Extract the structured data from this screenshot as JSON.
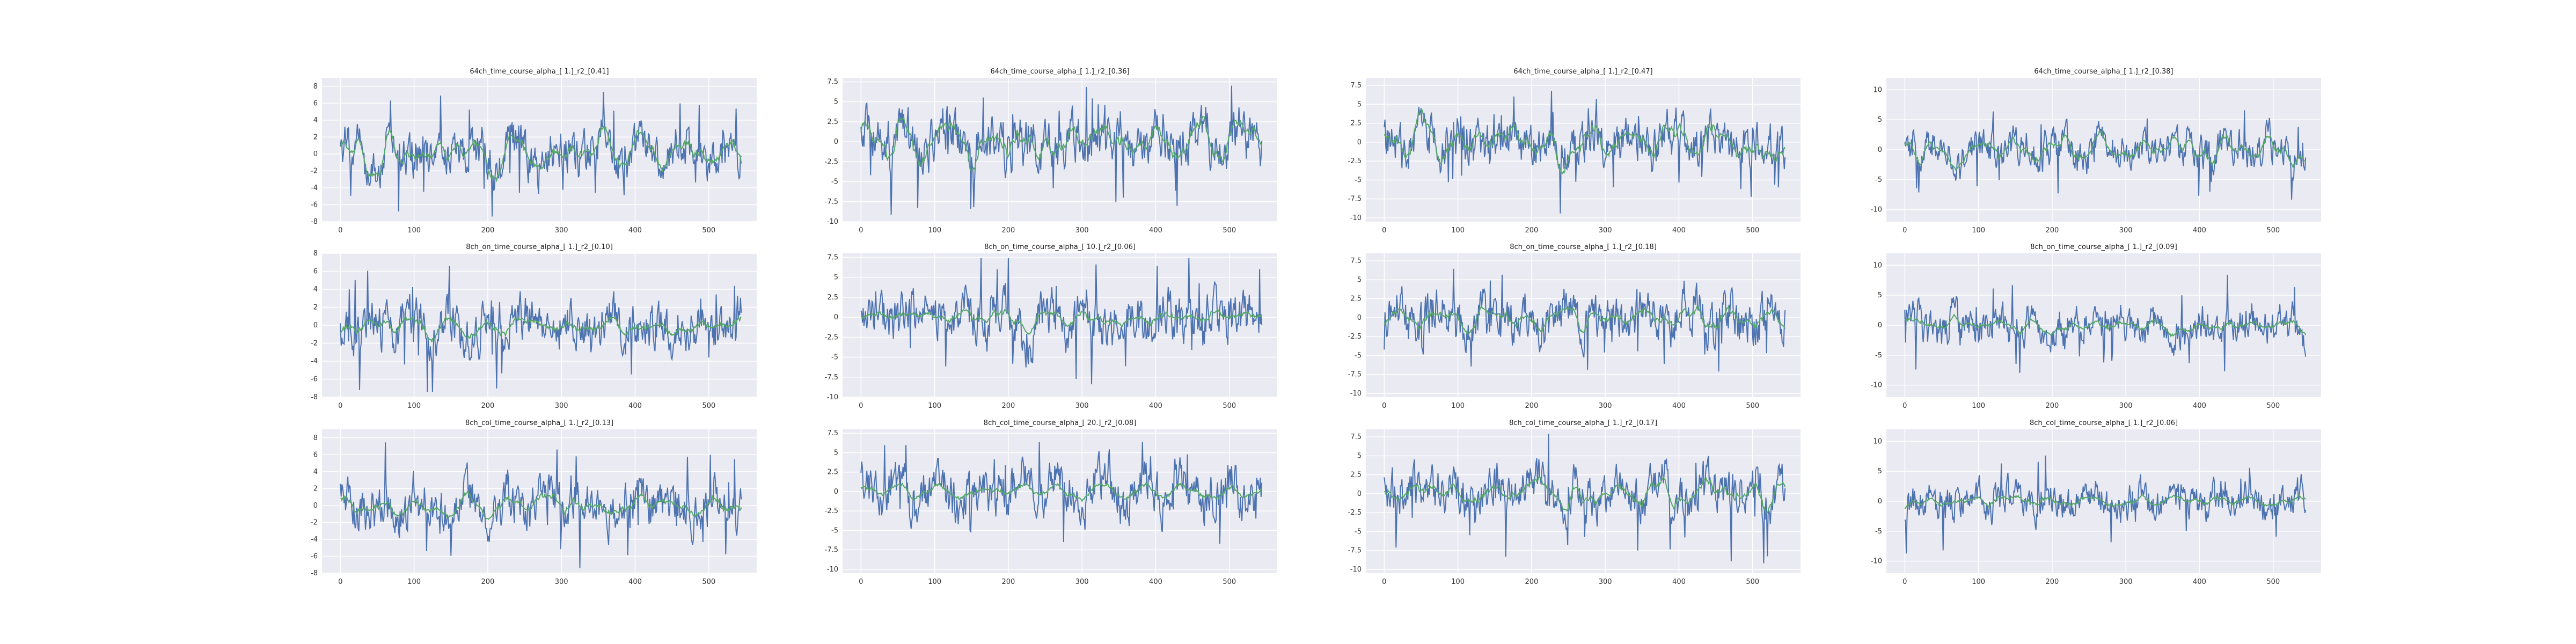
{
  "colors": {
    "panel_bg": "#eaeaf2",
    "grid": "#ffffff",
    "series_blue": "#4c72b0",
    "series_green": "#55a868"
  },
  "chart_data": [
    {
      "type": "line",
      "title": "64ch_time_course_alpha_[ 1.]_r2_[0.41]",
      "xlim": [
        0,
        540
      ],
      "ylim": [
        -8,
        9
      ],
      "yticks": [
        -8,
        -6,
        -4,
        -2,
        0,
        2,
        4,
        6,
        8
      ],
      "xticks": [
        0,
        100,
        200,
        300,
        400,
        500
      ],
      "amp": 2.6,
      "gamp": 1.6,
      "grid": true,
      "series": [
        {
          "color": "#4c72b0"
        },
        {
          "color": "#55a868"
        }
      ]
    },
    {
      "type": "line",
      "title": "64ch_time_course_alpha_[ 1.]_r2_[0.36]",
      "xlim": [
        0,
        540
      ],
      "ylim": [
        -10,
        8
      ],
      "yticks": [
        -10,
        -7.5,
        -5,
        -2.5,
        0,
        2.5,
        5,
        7.5
      ],
      "xticks": [
        0,
        100,
        200,
        300,
        400,
        500
      ],
      "amp": 3.0,
      "gamp": 1.8,
      "grid": true,
      "series": [
        {
          "color": "#4c72b0"
        },
        {
          "color": "#55a868"
        }
      ]
    },
    {
      "type": "line",
      "title": "64ch_time_course_alpha_[ 1.]_r2_[0.47]",
      "xlim": [
        0,
        540
      ],
      "ylim": [
        -10.5,
        8.5
      ],
      "yticks": [
        -10,
        -7.5,
        -5,
        -2.5,
        0,
        2.5,
        5,
        7.5
      ],
      "xticks": [
        0,
        100,
        200,
        300,
        400,
        500
      ],
      "amp": 3.0,
      "gamp": 2.0,
      "grid": true,
      "series": [
        {
          "color": "#4c72b0"
        },
        {
          "color": "#55a868"
        }
      ]
    },
    {
      "type": "line",
      "title": "64ch_time_course_alpha_[ 1.]_r2_[0.38]",
      "xlim": [
        0,
        540
      ],
      "ylim": [
        -12,
        12
      ],
      "yticks": [
        -10,
        -5,
        0,
        5,
        10
      ],
      "xticks": [
        0,
        100,
        200,
        300,
        400,
        500
      ],
      "amp": 3.0,
      "gamp": 1.5,
      "grid": true,
      "series": [
        {
          "color": "#4c72b0"
        },
        {
          "color": "#55a868"
        }
      ]
    },
    {
      "type": "line",
      "title": "8ch_on_time_course_alpha_[ 1.]_r2_[0.10]",
      "xlim": [
        0,
        540
      ],
      "ylim": [
        -8,
        8
      ],
      "yticks": [
        -8,
        -6,
        -4,
        -2,
        0,
        2,
        4,
        6,
        8
      ],
      "xticks": [
        0,
        100,
        200,
        300,
        400,
        500
      ],
      "amp": 2.6,
      "gamp": 0.8,
      "grid": true,
      "series": [
        {
          "color": "#4c72b0"
        },
        {
          "color": "#55a868"
        }
      ]
    },
    {
      "type": "line",
      "title": "8ch_on_time_course_alpha_[ 10.]_r2_[0.06]",
      "xlim": [
        0,
        540
      ],
      "ylim": [
        -10,
        8
      ],
      "yticks": [
        -10,
        -7.5,
        -5,
        -2.5,
        0,
        2.5,
        5,
        7.5
      ],
      "xticks": [
        0,
        100,
        200,
        300,
        400,
        500
      ],
      "amp": 3.0,
      "gamp": 0.7,
      "grid": true,
      "series": [
        {
          "color": "#4c72b0"
        },
        {
          "color": "#55a868"
        }
      ]
    },
    {
      "type": "line",
      "title": "8ch_on_time_course_alpha_[ 1.]_r2_[0.18]",
      "xlim": [
        0,
        540
      ],
      "ylim": [
        -10.5,
        8.5
      ],
      "yticks": [
        -10,
        -7.5,
        -5,
        -2.5,
        0,
        2.5,
        5,
        7.5
      ],
      "xticks": [
        0,
        100,
        200,
        300,
        400,
        500
      ],
      "amp": 3.0,
      "gamp": 1.1,
      "grid": true,
      "series": [
        {
          "color": "#4c72b0"
        },
        {
          "color": "#55a868"
        }
      ]
    },
    {
      "type": "line",
      "title": "8ch_on_time_course_alpha_[ 1.]_r2_[0.09]",
      "xlim": [
        0,
        540
      ],
      "ylim": [
        -12,
        12
      ],
      "yticks": [
        -10,
        -5,
        0,
        5,
        10
      ],
      "xticks": [
        0,
        100,
        200,
        300,
        400,
        500
      ],
      "amp": 3.0,
      "gamp": 0.8,
      "grid": true,
      "series": [
        {
          "color": "#4c72b0"
        },
        {
          "color": "#55a868"
        }
      ]
    },
    {
      "type": "line",
      "title": "8ch_col_time_course_alpha_[ 1.]_r2_[0.13]",
      "xlim": [
        0,
        540
      ],
      "ylim": [
        -8,
        9
      ],
      "yticks": [
        -8,
        -6,
        -4,
        -2,
        0,
        2,
        4,
        6,
        8
      ],
      "xticks": [
        0,
        100,
        200,
        300,
        400,
        500
      ],
      "amp": 2.6,
      "gamp": 0.9,
      "grid": true,
      "series": [
        {
          "color": "#4c72b0"
        },
        {
          "color": "#55a868"
        }
      ]
    },
    {
      "type": "line",
      "title": "8ch_col_time_course_alpha_[ 20.]_r2_[0.08]",
      "xlim": [
        0,
        540
      ],
      "ylim": [
        -10.5,
        8
      ],
      "yticks": [
        -10,
        -7.5,
        -5,
        -2.5,
        0,
        2.5,
        5,
        7.5
      ],
      "xticks": [
        0,
        100,
        200,
        300,
        400,
        500
      ],
      "amp": 3.0,
      "gamp": 0.6,
      "grid": true,
      "series": [
        {
          "color": "#4c72b0"
        },
        {
          "color": "#55a868"
        }
      ]
    },
    {
      "type": "line",
      "title": "8ch_col_time_course_alpha_[ 1.]_r2_[0.17]",
      "xlim": [
        0,
        540
      ],
      "ylim": [
        -10.5,
        8.5
      ],
      "yticks": [
        -10,
        -7.5,
        -5,
        -2.5,
        0,
        2.5,
        5,
        7.5
      ],
      "xticks": [
        0,
        100,
        200,
        300,
        400,
        500
      ],
      "amp": 3.0,
      "gamp": 1.1,
      "grid": true,
      "series": [
        {
          "color": "#4c72b0"
        },
        {
          "color": "#55a868"
        }
      ]
    },
    {
      "type": "line",
      "title": "8ch_col_time_course_alpha_[ 1.]_r2_[0.06]",
      "xlim": [
        0,
        540
      ],
      "ylim": [
        -12,
        12
      ],
      "yticks": [
        -10,
        -5,
        0,
        5,
        10
      ],
      "xticks": [
        0,
        100,
        200,
        300,
        400,
        500
      ],
      "amp": 3.0,
      "gamp": 0.7,
      "grid": true,
      "series": [
        {
          "color": "#4c72b0"
        },
        {
          "color": "#55a868"
        }
      ]
    }
  ]
}
